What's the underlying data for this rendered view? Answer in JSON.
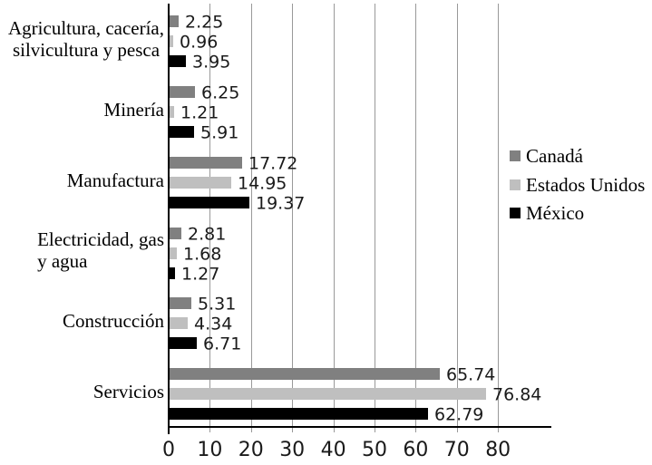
{
  "chart_data": {
    "type": "bar",
    "orientation": "horizontal",
    "title": "",
    "xlabel": "",
    "ylabel": "",
    "categories": [
      {
        "label": "Agricultura, cacería,\nsilvicultura y pesca",
        "align": "center"
      },
      {
        "label": "Minería",
        "align": "right"
      },
      {
        "label": "Manufactura",
        "align": "right"
      },
      {
        "label": "Electricidad, gas\ny agua",
        "align": "left"
      },
      {
        "label": "Construcción",
        "align": "right"
      },
      {
        "label": "Servicios",
        "align": "right"
      }
    ],
    "series": [
      {
        "name": "Canadá",
        "color": "#808080",
        "values": [
          2.25,
          6.25,
          17.72,
          2.81,
          5.31,
          65.74
        ]
      },
      {
        "name": "Estados Unidos",
        "color": "#BFBFBF",
        "values": [
          0.96,
          1.21,
          14.95,
          1.68,
          4.34,
          76.84
        ]
      },
      {
        "name": "México",
        "color": "#000000",
        "values": [
          3.95,
          5.91,
          19.37,
          1.27,
          6.71,
          62.79
        ]
      }
    ],
    "data_labels": true,
    "value_format_decimals": 2,
    "x_axis": {
      "ticks": [
        0,
        10,
        20,
        30,
        40,
        50,
        60,
        70,
        80
      ],
      "min": 0,
      "max_labeled": 80,
      "axis_extends_to": 93
    },
    "grid": true,
    "legend_position": "right-middle",
    "colors": {
      "gridline": "#999999",
      "axis": "#000000",
      "label_text": "#1a1a1a",
      "background": "#ffffff"
    }
  }
}
